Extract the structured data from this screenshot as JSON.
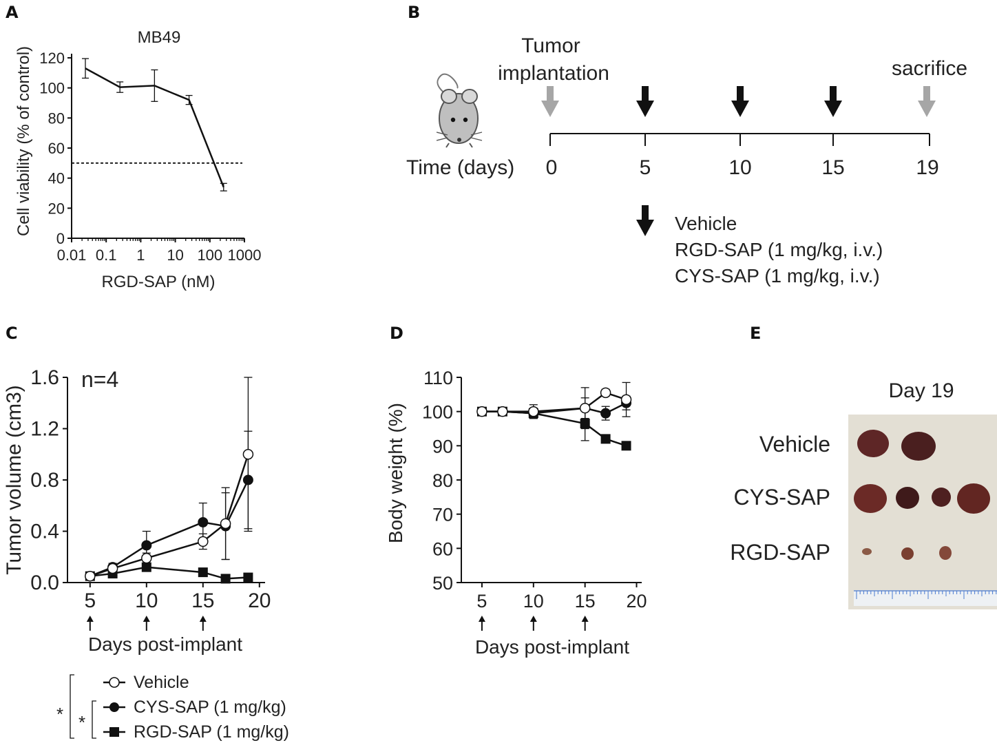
{
  "panels": {
    "a": "A",
    "b": "B",
    "c": "C",
    "d": "D",
    "e": "E"
  },
  "chart_data": [
    {
      "id": "A",
      "type": "line",
      "title": "MB49",
      "xlabel": "RGD-SAP (nM)",
      "ylabel": "Cell viability (% of control)",
      "xscale": "log",
      "xlim": [
        0.01,
        1000
      ],
      "ylim": [
        0,
        120
      ],
      "xticks": [
        0.01,
        0.1,
        1,
        10,
        100,
        1000
      ],
      "xtick_labels": [
        "0.01",
        "0.1",
        "1",
        "10",
        "100",
        "1000"
      ],
      "yticks": [
        0,
        20,
        40,
        60,
        80,
        100,
        120
      ],
      "ytick_labels": [
        "0",
        "20",
        "40",
        "60",
        "80",
        "100",
        "120"
      ],
      "x": [
        0.025,
        0.25,
        2.5,
        25,
        250
      ],
      "y": [
        113,
        100.5,
        101.5,
        92,
        34
      ],
      "err": [
        6.5,
        3.5,
        10.5,
        3,
        2.5
      ],
      "reference_line": {
        "y": 50,
        "style": "dashed"
      }
    },
    {
      "id": "C",
      "type": "line",
      "annotation": "n=4",
      "xlabel": "Days post-implant",
      "ylabel": "Tumor volume (cm3)",
      "xlim": [
        3,
        20.5
      ],
      "ylim": [
        0,
        1.6
      ],
      "xticks": [
        5,
        10,
        15,
        20
      ],
      "xtick_labels": [
        "5",
        "10",
        "15",
        "20"
      ],
      "yticks": [
        0,
        0.4,
        0.8,
        1.2,
        1.6
      ],
      "ytick_labels": [
        "0.0",
        "0.4",
        "0.8",
        "1.2",
        "1.6"
      ],
      "dose_arrows": [
        5,
        10,
        15
      ],
      "series": [
        {
          "name": "Vehicle",
          "marker": "open-circle",
          "x": [
            5,
            7,
            10,
            15,
            17,
            19
          ],
          "y": [
            0.05,
            0.11,
            0.19,
            0.32,
            0.46,
            1.0
          ],
          "err": [
            0.02,
            0.03,
            0.04,
            0.06,
            0.28,
            0.6
          ]
        },
        {
          "name": "CYS-SAP (1 mg/kg)",
          "marker": "filled-circle",
          "x": [
            5,
            7,
            10,
            15,
            17,
            19
          ],
          "y": [
            0.05,
            0.12,
            0.29,
            0.47,
            0.44,
            0.8
          ],
          "err": [
            0.02,
            0.03,
            0.11,
            0.15,
            0.26,
            0.38
          ]
        },
        {
          "name": "RGD-SAP (1 mg/kg)",
          "marker": "filled-square",
          "x": [
            5,
            7,
            10,
            15,
            17,
            19
          ],
          "y": [
            0.05,
            0.07,
            0.12,
            0.08,
            0.03,
            0.04
          ],
          "err": [
            0.01,
            0.01,
            0.02,
            0.01,
            0.01,
            0.01
          ]
        }
      ],
      "legend": {
        "entries": [
          "Vehicle",
          "CYS-SAP (1 mg/kg)",
          "RGD-SAP (1 mg/kg)"
        ],
        "significance": [
          "*",
          "*"
        ],
        "placement": "bottom-left"
      }
    },
    {
      "id": "D",
      "type": "line",
      "xlabel": "Days post-implant",
      "ylabel": "Body weight (%)",
      "xlim": [
        3,
        20.5
      ],
      "ylim": [
        50,
        110
      ],
      "xticks": [
        5,
        10,
        15,
        20
      ],
      "xtick_labels": [
        "5",
        "10",
        "15",
        "20"
      ],
      "yticks": [
        50,
        60,
        70,
        80,
        90,
        100,
        110
      ],
      "ytick_labels": [
        "50",
        "60",
        "70",
        "80",
        "90",
        "100",
        "110"
      ],
      "dose_arrows": [
        5,
        10,
        15
      ],
      "series": [
        {
          "name": "Vehicle",
          "marker": "open-circle",
          "x": [
            5,
            7,
            10,
            15,
            17,
            19
          ],
          "y": [
            100,
            100,
            100,
            101,
            105.5,
            103.5
          ],
          "err": [
            0.4,
            0.4,
            2,
            6,
            1,
            5
          ]
        },
        {
          "name": "CYS-SAP (1 mg/kg)",
          "marker": "filled-circle",
          "x": [
            5,
            7,
            10,
            15,
            17,
            19
          ],
          "y": [
            100,
            100,
            99.5,
            101,
            99.5,
            102.5
          ],
          "err": [
            0.4,
            0.4,
            1.5,
            3,
            2,
            2
          ]
        },
        {
          "name": "RGD-SAP (1 mg/kg)",
          "marker": "filled-square",
          "x": [
            5,
            7,
            10,
            15,
            17,
            19
          ],
          "y": [
            100,
            100,
            99.5,
            96.5,
            92,
            90
          ],
          "err": [
            0.4,
            0.4,
            1.5,
            5,
            1,
            0.6
          ]
        }
      ]
    }
  ],
  "timeline": {
    "axis_label": "Time (days)",
    "days": [
      "0",
      "5",
      "10",
      "15",
      "19"
    ],
    "implantation_label_1": "Tumor",
    "implantation_label_2": "implantation",
    "sacrifice_label": "sacrifice",
    "treatments": [
      "Vehicle",
      "RGD-SAP (1 mg/kg, i.v.)",
      "CYS-SAP (1 mg/kg, i.v.)"
    ]
  },
  "photo": {
    "title": "Day 19",
    "rows": [
      "Vehicle",
      "CYS-SAP",
      "RGD-SAP"
    ]
  },
  "colors": {
    "ink": "#111111",
    "grey_arrow": "#a6a6a6",
    "photo_bg": "#e3dfd4",
    "tumor": "#5e2626"
  }
}
